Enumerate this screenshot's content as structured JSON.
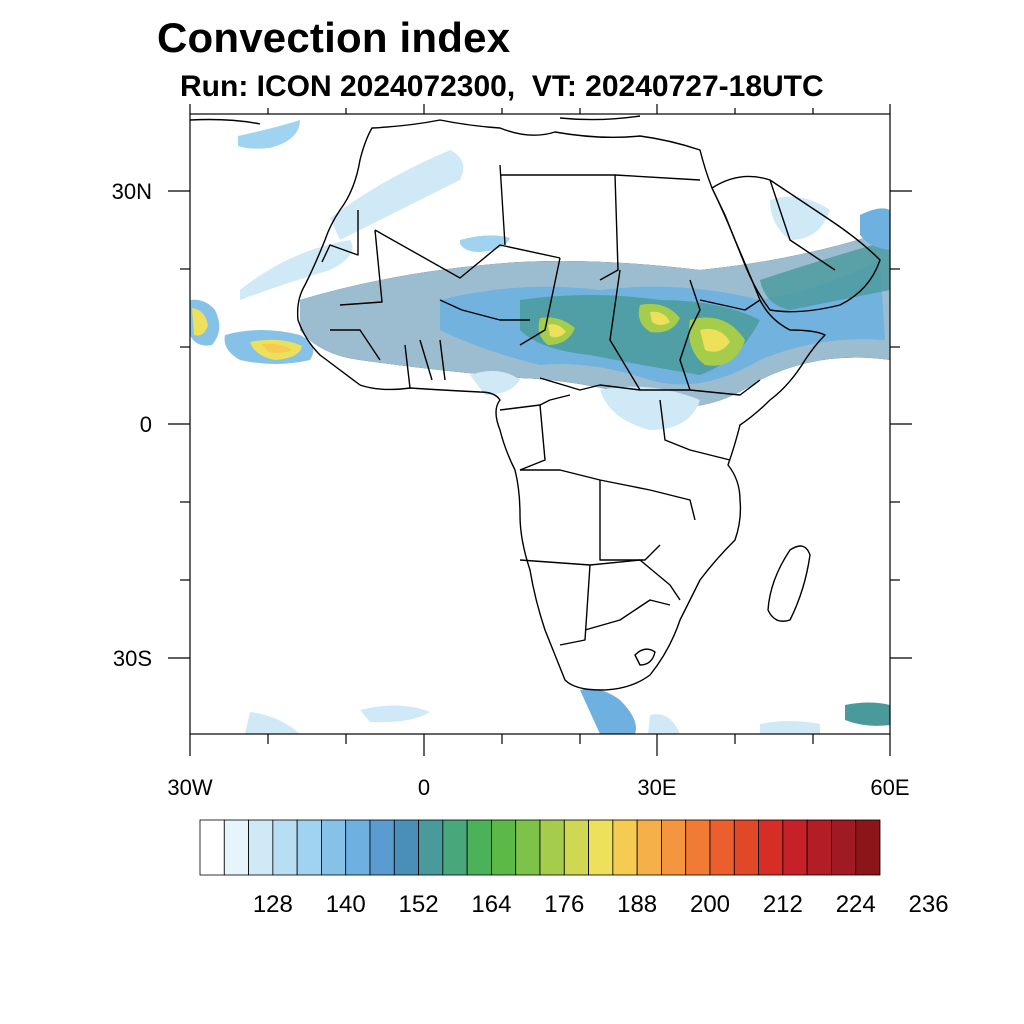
{
  "title": "Convection index",
  "subtitle": "Run: ICON 2024072300,  VT: 20240727-18UTC",
  "axes": {
    "lon_range": [
      -30,
      60
    ],
    "lat_range": [
      -40,
      40
    ],
    "lat_labels": [
      "30N",
      "0",
      "30S"
    ],
    "lon_labels": [
      "30W",
      "0",
      "30E",
      "60E"
    ]
  },
  "legend": {
    "colors": [
      "#ffffff",
      "#e6f4fb",
      "#cfe9f7",
      "#b7def3",
      "#9fd3ef",
      "#86c2e8",
      "#6eb0e0",
      "#5a9ccf",
      "#4a8fb8",
      "#4a9a9c",
      "#48a87c",
      "#4bb25a",
      "#5cb948",
      "#7dc34a",
      "#a6cc4c",
      "#cfd753",
      "#ede05a",
      "#f6cb52",
      "#f6b04a",
      "#f49540",
      "#f17a35",
      "#ea5f2d",
      "#e14828",
      "#d62e26",
      "#c62128",
      "#b21d26",
      "#9f1a22",
      "#8a1619"
    ],
    "tick_labels": [
      "128",
      "140",
      "152",
      "164",
      "176",
      "188",
      "200",
      "212",
      "224",
      "236"
    ]
  }
}
